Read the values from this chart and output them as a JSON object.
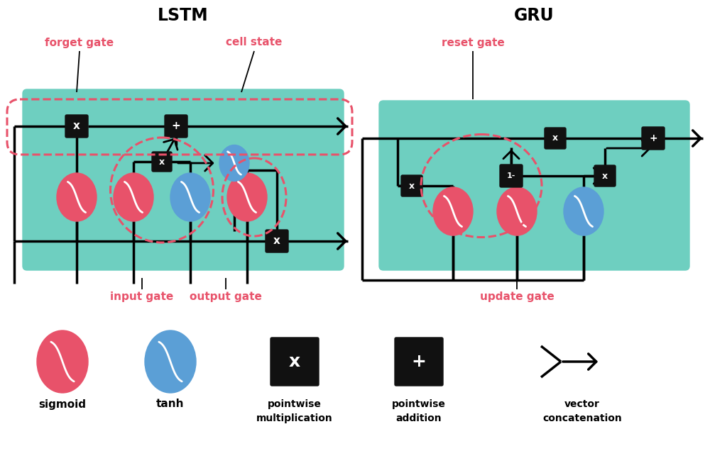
{
  "bg_color": "#ffffff",
  "teal_color": "#6ecfc0",
  "red_color": "#e8526a",
  "blue_color": "#5b9fd6",
  "dashed_red": "#e8526a",
  "title_lstm": "LSTM",
  "title_gru": "GRU",
  "label_forget": "forget gate",
  "label_cell": "cell state",
  "label_input": "input gate",
  "label_output": "output gate",
  "label_reset": "reset gate",
  "label_update": "update gate",
  "legend_sigmoid": "sigmoid",
  "legend_tanh": "tanh",
  "legend_mult": "pointwise\nmultiplication",
  "legend_add": "pointwise\naddition",
  "legend_concat": "vector\nconcatenation"
}
